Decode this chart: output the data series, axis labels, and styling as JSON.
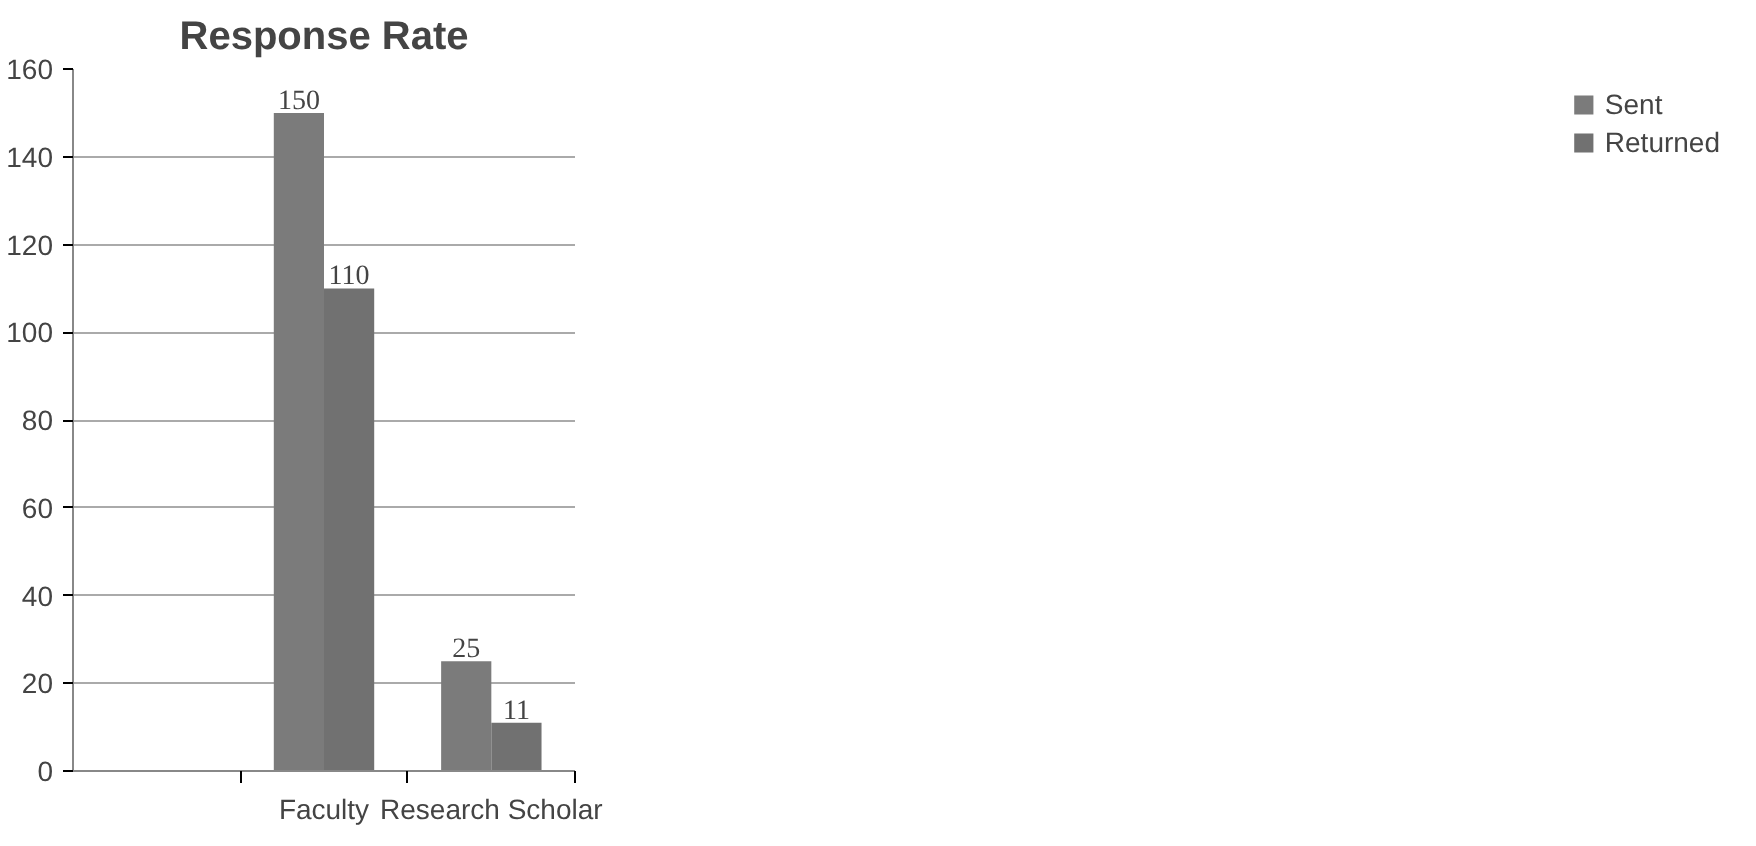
{
  "chart_data": {
    "type": "bar",
    "title": "Response Rate",
    "categories": [
      null,
      "Faculty",
      "Research Scholar"
    ],
    "series": [
      {
        "name": "Sent",
        "color": "#7b7b7b",
        "values": [
          null,
          150,
          25
        ]
      },
      {
        "name": "Returned",
        "color": "#717171",
        "values": [
          null,
          110,
          11
        ]
      }
    ],
    "ylim": [
      0,
      160
    ],
    "yticks": [
      0,
      20,
      40,
      60,
      80,
      100,
      120,
      140,
      160
    ],
    "grid": "y",
    "legend": "right",
    "data_labels": true
  }
}
